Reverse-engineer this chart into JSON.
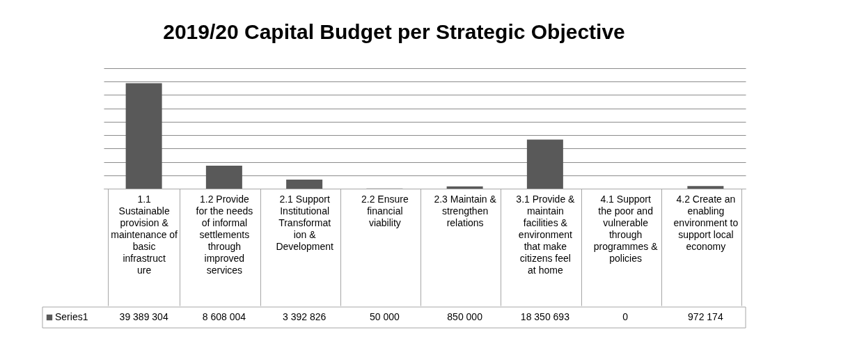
{
  "chart_data": {
    "type": "bar",
    "title": "2019/20 Capital Budget per Strategic Objective",
    "categories": [
      "1.1 Sustainable provision & maintenance of basic infrastructure",
      "1.2 Provide for the needs of informal settlements through improved services",
      "2.1 Support Institutional Transformation & Development",
      "2.2 Ensure financial viability",
      "2.3 Maintain & strengthen relations",
      "3.1 Provide & maintain facilities & environment that make citizens feel at home",
      "4.1 Support the poor and vulnerable through programmes & policies",
      "4.2 Create an enabling environment to support local economy"
    ],
    "series": [
      {
        "name": "Series1",
        "color": "#595959",
        "values": [
          39389304,
          8608004,
          3392826,
          50000,
          850000,
          18350693,
          0,
          972174
        ],
        "value_labels": [
          "39 389 304",
          "8 608 004",
          "3 392 826",
          "50 000",
          "850 000",
          "18 350 693",
          "0",
          "972 174"
        ]
      }
    ],
    "ylim": [
      0,
      45000000
    ],
    "yticks": [
      {
        "value": 0,
        "label": null
      },
      {
        "value": 5000000,
        "label": null
      },
      {
        "value": 10000000,
        "label": null
      },
      {
        "value": 15000000,
        "label": null
      },
      {
        "value": 20000000,
        "label": null
      },
      {
        "value": 25000000,
        "label": null
      },
      {
        "value": 30000000,
        "label": null
      },
      {
        "value": 35000000,
        "label": null
      },
      {
        "value": 40000000,
        "label": null
      },
      {
        "value": 45000000,
        "label": null
      }
    ],
    "grid": "y",
    "tick_labels": "x"
  }
}
